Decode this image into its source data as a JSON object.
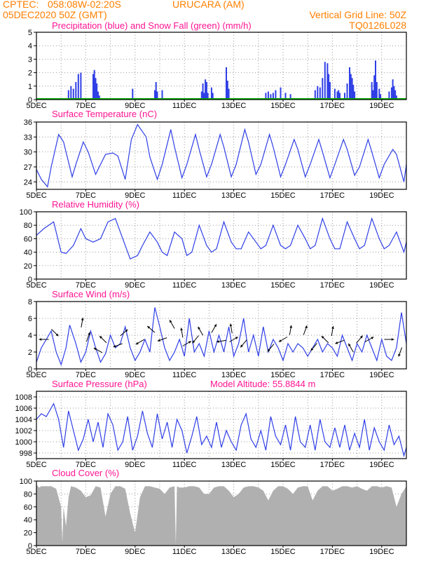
{
  "header": {
    "source": "CPTEC:",
    "coords": "058:08W-02:20S",
    "station": "URUCARA (AM)",
    "run": "05DEC2020 50Z (GMT)",
    "grid_note": "Vertical Grid Line: 50Z",
    "code": "TQ0126L028"
  },
  "x_axis": {
    "labels": [
      "5DEC",
      "7DEC",
      "9DEC",
      "11DEC",
      "13DEC",
      "15DEC",
      "17DEC",
      "19DEC"
    ],
    "day_start": 5,
    "day_end": 20
  },
  "colors": {
    "line": "#2f3fe6",
    "snow": "#00b000",
    "cloud": "#b0b0b0",
    "header": "#ff7f00",
    "title": "#ff1493"
  },
  "chart_data": [
    {
      "type": "bar",
      "title": "Precipitation (blue) and Snow Fall (green) (mm/h)",
      "ylim": [
        0,
        5
      ],
      "yticks": [
        0,
        1,
        2,
        3,
        4,
        5
      ],
      "series": [
        {
          "name": "Precipitation",
          "x": [
            6.3,
            6.4,
            6.5,
            6.6,
            6.7,
            6.8,
            7.3,
            7.35,
            7.4,
            7.45,
            7.5,
            7.55,
            8.9,
            9.8,
            9.85,
            9.9,
            10.1,
            11.7,
            11.75,
            11.8,
            11.85,
            11.9,
            11.95,
            12.1,
            12.15,
            12.7,
            12.75,
            12.8,
            14.3,
            14.4,
            14.5,
            14.6,
            14.7,
            14.9,
            15.1,
            15.3,
            16.3,
            16.4,
            16.5,
            16.6,
            16.7,
            16.8,
            16.85,
            16.9,
            17.1,
            17.2,
            17.25,
            17.3,
            17.5,
            17.6,
            17.7,
            17.75,
            17.8,
            17.85,
            17.9,
            18.6,
            18.65,
            18.7,
            18.75,
            18.8,
            18.9,
            18.95,
            19.3,
            19.4,
            19.45,
            19.5,
            19.55,
            19.6
          ],
          "values": [
            0.7,
            1.0,
            0.8,
            1.3,
            1.9,
            2.0,
            1.9,
            2.2,
            1.6,
            1.2,
            0.6,
            0.3,
            0.8,
            0.7,
            1.3,
            0.6,
            0.7,
            0.6,
            1.2,
            0.5,
            1.5,
            1.3,
            0.5,
            0.9,
            0.5,
            2.4,
            1.4,
            0.8,
            0.5,
            0.6,
            0.4,
            0.5,
            0.7,
            0.9,
            0.5,
            0.4,
            0.7,
            1.0,
            0.9,
            1.6,
            2.8,
            2.7,
            1.9,
            1.3,
            0.8,
            0.6,
            0.7,
            0.5,
            0.5,
            1.2,
            2.4,
            1.9,
            1.6,
            1.1,
            0.6,
            1.3,
            0.7,
            1.8,
            2.9,
            1.3,
            0.8,
            0.4,
            0.6,
            0.9,
            1.5,
            1.0,
            0.7,
            0.3
          ]
        },
        {
          "name": "Snow Fall",
          "x": [
            5,
            20
          ],
          "values": [
            0,
            0
          ]
        }
      ]
    },
    {
      "type": "line",
      "title": "Surface Temperature (nC)",
      "ylim": [
        22.5,
        36
      ],
      "yticks": [
        24,
        27,
        30,
        33,
        36
      ],
      "series": [
        {
          "name": "Surface Temperature",
          "x": [
            5.0,
            5.2,
            5.45,
            5.6,
            5.9,
            6.1,
            6.45,
            6.6,
            6.9,
            7.1,
            7.4,
            7.6,
            7.8,
            8.1,
            8.3,
            8.6,
            8.85,
            9.1,
            9.45,
            9.6,
            9.9,
            10.1,
            10.45,
            10.6,
            10.9,
            11.1,
            11.45,
            11.6,
            11.9,
            12.1,
            12.45,
            12.6,
            12.9,
            13.1,
            13.45,
            13.6,
            13.9,
            14.1,
            14.45,
            14.6,
            14.9,
            15.1,
            15.45,
            15.6,
            15.9,
            16.1,
            16.45,
            16.6,
            16.9,
            17.1,
            17.45,
            17.6,
            17.9,
            18.1,
            18.45,
            18.6,
            18.9,
            19.1,
            19.45,
            19.6,
            19.9,
            20.0
          ],
          "values": [
            26.5,
            24.5,
            23.0,
            27.0,
            33.5,
            32.0,
            25.0,
            27.5,
            32.0,
            30.0,
            25.5,
            27.5,
            29.5,
            29.8,
            29.2,
            24.5,
            32.5,
            35.5,
            33.0,
            29.0,
            24.5,
            27.5,
            34.5,
            31.0,
            24.8,
            27.5,
            33.5,
            30.5,
            25.0,
            27.5,
            33.5,
            31.0,
            25.0,
            27.5,
            34.5,
            32.0,
            25.5,
            27.5,
            33.5,
            31.0,
            25.0,
            27.5,
            32.5,
            30.5,
            25.0,
            27.5,
            32.5,
            30.0,
            24.8,
            27.5,
            32.5,
            30.5,
            25.3,
            27.0,
            32.5,
            30.0,
            24.8,
            27.5,
            30.5,
            29.5,
            24.0,
            27.5
          ]
        }
      ]
    },
    {
      "type": "line",
      "title": "Relative Humidity (%)",
      "ylim": [
        0,
        100
      ],
      "yticks": [
        0,
        20,
        40,
        60,
        80,
        100
      ],
      "series": [
        {
          "name": "Relative Humidity",
          "x": [
            5.0,
            5.3,
            5.7,
            6.0,
            6.2,
            6.5,
            6.8,
            7.0,
            7.3,
            7.6,
            7.9,
            8.2,
            8.5,
            8.8,
            9.1,
            9.3,
            9.6,
            9.9,
            10.1,
            10.3,
            10.6,
            10.9,
            11.1,
            11.3,
            11.6,
            11.9,
            12.1,
            12.3,
            12.6,
            12.9,
            13.1,
            13.3,
            13.6,
            13.9,
            14.1,
            14.3,
            14.6,
            14.9,
            15.1,
            15.3,
            15.6,
            15.9,
            16.1,
            16.3,
            16.6,
            16.9,
            17.1,
            17.3,
            17.6,
            17.9,
            18.1,
            18.3,
            18.6,
            18.9,
            19.1,
            19.3,
            19.6,
            19.9,
            20.0
          ],
          "values": [
            65,
            75,
            85,
            40,
            38,
            50,
            75,
            60,
            55,
            60,
            85,
            90,
            60,
            30,
            35,
            50,
            70,
            55,
            40,
            35,
            70,
            60,
            35,
            40,
            80,
            50,
            40,
            45,
            85,
            55,
            45,
            45,
            70,
            55,
            45,
            50,
            80,
            50,
            45,
            50,
            80,
            60,
            45,
            50,
            90,
            60,
            45,
            45,
            85,
            60,
            45,
            50,
            90,
            60,
            45,
            50,
            70,
            40,
            55
          ]
        }
      ]
    },
    {
      "type": "line",
      "title": "Surface Wind (m/s)",
      "ylim": [
        0,
        8
      ],
      "yticks": [
        0,
        2,
        4,
        6,
        8
      ],
      "series": [
        {
          "name": "Surface Wind",
          "x": [
            5.0,
            5.2,
            5.4,
            5.6,
            5.8,
            6.0,
            6.2,
            6.35,
            6.6,
            6.8,
            7.0,
            7.2,
            7.4,
            7.6,
            7.8,
            8.0,
            8.2,
            8.4,
            8.6,
            8.8,
            9.0,
            9.2,
            9.4,
            9.6,
            9.8,
            10.0,
            10.2,
            10.4,
            10.6,
            10.8,
            11.0,
            11.2,
            11.4,
            11.6,
            11.8,
            12.0,
            12.2,
            12.4,
            12.6,
            12.8,
            13.0,
            13.2,
            13.4,
            13.6,
            13.8,
            14.0,
            14.2,
            14.4,
            14.6,
            14.8,
            15.0,
            15.2,
            15.4,
            15.6,
            15.8,
            16.0,
            16.2,
            16.4,
            16.6,
            16.8,
            17.0,
            17.2,
            17.4,
            17.6,
            17.8,
            18.0,
            18.2,
            18.4,
            18.6,
            18.8,
            19.0,
            19.2,
            19.4,
            19.6,
            19.8,
            20.0
          ],
          "values": [
            0.8,
            2.5,
            3.5,
            4.5,
            2.0,
            0.5,
            2.5,
            5.2,
            3.0,
            0.8,
            2.0,
            4.5,
            2.5,
            0.8,
            1.8,
            4.0,
            2.5,
            3.0,
            5.0,
            2.5,
            1.0,
            2.0,
            3.5,
            2.0,
            7.3,
            5.0,
            2.5,
            1.0,
            2.0,
            3.5,
            1.5,
            6.0,
            2.0,
            3.0,
            1.5,
            4.5,
            2.0,
            4.0,
            2.0,
            5.0,
            1.5,
            3.0,
            6.0,
            2.0,
            4.0,
            1.5,
            5.0,
            2.0,
            3.5,
            2.5,
            1.0,
            3.0,
            2.0,
            3.0,
            2.5,
            1.5,
            2.5,
            3.5,
            2.0,
            3.0,
            2.5,
            1.5,
            4.0,
            2.5,
            1.0,
            3.0,
            2.0,
            4.0,
            2.5,
            1.0,
            3.5,
            1.5,
            1.0,
            2.5,
            6.7,
            3.0
          ]
        }
      ]
    },
    {
      "type": "line",
      "title": "Surface Pressure (hPa)",
      "annotation": "Model Altitude: 55.8844 m",
      "ylim": [
        997,
        1009
      ],
      "yticks": [
        998,
        1000,
        1002,
        1004,
        1006,
        1008
      ],
      "series": [
        {
          "name": "Surface Pressure",
          "x": [
            5.0,
            5.2,
            5.4,
            5.7,
            5.9,
            6.1,
            6.3,
            6.5,
            6.7,
            6.9,
            7.1,
            7.3,
            7.5,
            7.7,
            7.9,
            8.1,
            8.3,
            8.5,
            8.7,
            8.9,
            9.1,
            9.3,
            9.5,
            9.7,
            9.9,
            10.1,
            10.3,
            10.5,
            10.7,
            10.9,
            11.1,
            11.3,
            11.5,
            11.7,
            11.9,
            12.1,
            12.3,
            12.5,
            12.7,
            12.9,
            13.1,
            13.3,
            13.5,
            13.7,
            13.9,
            14.1,
            14.3,
            14.5,
            14.7,
            14.9,
            15.1,
            15.3,
            15.5,
            15.7,
            15.9,
            16.1,
            16.3,
            16.5,
            16.7,
            16.9,
            17.1,
            17.3,
            17.5,
            17.7,
            17.9,
            18.1,
            18.3,
            18.5,
            18.7,
            18.9,
            19.1,
            19.3,
            19.5,
            19.7,
            19.9,
            20.0
          ],
          "values": [
            1004.0,
            1005.0,
            1004.5,
            1006.8,
            1004.0,
            999.0,
            1005.5,
            1002.0,
            998.5,
            1000.5,
            1004.0,
            1000.0,
            1003.5,
            999.0,
            1005.0,
            1003.0,
            998.5,
            1000.0,
            1004.5,
            998.5,
            1001.0,
            1005.5,
            1001.5,
            999.0,
            1005.0,
            1000.5,
            1003.5,
            999.0,
            1004.0,
            1002.0,
            998.0,
            1001.0,
            1004.5,
            999.5,
            1001.0,
            999.0,
            1003.5,
            999.0,
            1002.0,
            1000.0,
            998.5,
            1003.0,
            1005.0,
            1000.5,
            999.0,
            1002.0,
            998.5,
            1004.5,
            1001.0,
            999.5,
            1003.0,
            998.5,
            1004.5,
            1000.0,
            999.0,
            1003.0,
            998.5,
            1004.0,
            1000.0,
            999.0,
            1002.5,
            999.0,
            1003.0,
            998.5,
            1001.5,
            999.0,
            1004.0,
            998.5,
            1002.5,
            1000.0,
            998.5,
            1003.0,
            999.5,
            1001.0,
            997.5,
            999.0
          ]
        }
      ]
    },
    {
      "type": "area",
      "title": "Cloud Cover (%)",
      "ylim": [
        0,
        100
      ],
      "yticks": [
        0,
        20,
        40,
        60,
        80,
        100
      ],
      "series": [
        {
          "name": "Cloud Cover",
          "x": [
            5.0,
            5.1,
            5.2,
            5.4,
            5.6,
            5.8,
            6.0,
            6.05,
            6.1,
            6.2,
            6.3,
            6.4,
            6.6,
            6.8,
            7.0,
            7.2,
            7.4,
            7.6,
            7.8,
            8.0,
            8.2,
            8.4,
            8.6,
            8.8,
            9.0,
            9.2,
            9.4,
            9.6,
            9.8,
            10.0,
            10.2,
            10.4,
            10.6,
            10.65,
            10.7,
            10.8,
            11.0,
            11.2,
            11.4,
            11.6,
            11.8,
            12.0,
            12.2,
            12.4,
            12.6,
            12.8,
            13.0,
            13.2,
            13.4,
            13.6,
            13.8,
            14.0,
            14.2,
            14.4,
            14.6,
            14.8,
            15.0,
            15.2,
            15.4,
            15.6,
            15.8,
            16.0,
            16.2,
            16.4,
            16.6,
            16.8,
            17.0,
            17.2,
            17.4,
            17.6,
            17.8,
            18.0,
            18.2,
            18.4,
            18.6,
            18.8,
            19.0,
            19.2,
            19.4,
            19.6,
            19.8,
            20.0
          ],
          "values": [
            95,
            90,
            92,
            92,
            92,
            88,
            60,
            5,
            60,
            30,
            75,
            92,
            90,
            85,
            75,
            78,
            92,
            90,
            45,
            80,
            92,
            92,
            88,
            50,
            20,
            75,
            92,
            92,
            90,
            88,
            80,
            90,
            92,
            2,
            92,
            90,
            90,
            92,
            92,
            90,
            80,
            80,
            90,
            92,
            92,
            85,
            75,
            80,
            90,
            92,
            92,
            90,
            85,
            70,
            85,
            92,
            92,
            88,
            80,
            90,
            92,
            92,
            70,
            85,
            92,
            92,
            85,
            88,
            92,
            92,
            90,
            92,
            88,
            85,
            92,
            92,
            90,
            92,
            90,
            60,
            80,
            92
          ]
        }
      ]
    }
  ],
  "wind_arrows": [
    {
      "x": 5.3,
      "y": 3.5,
      "dir": 180
    },
    {
      "x": 5.75,
      "y": 4.3,
      "dir": 315
    },
    {
      "x": 6.85,
      "y": 5.5,
      "dir": 80
    },
    {
      "x": 7.1,
      "y": 3.8,
      "dir": 70
    },
    {
      "x": 7.5,
      "y": 2.2,
      "dir": 150
    },
    {
      "x": 7.7,
      "y": 3.5,
      "dir": 135
    },
    {
      "x": 8.3,
      "y": 2.8,
      "dir": 200
    },
    {
      "x": 8.55,
      "y": 4.3,
      "dir": 40
    },
    {
      "x": 9.2,
      "y": 3.2,
      "dir": 210
    },
    {
      "x": 9.65,
      "y": 4.7,
      "dir": 140
    },
    {
      "x": 10.1,
      "y": 3.5,
      "dir": 200
    },
    {
      "x": 10.5,
      "y": 5.3,
      "dir": 120
    },
    {
      "x": 10.9,
      "y": 4.3,
      "dir": 100
    },
    {
      "x": 11.1,
      "y": 3.0,
      "dir": 30
    },
    {
      "x": 11.45,
      "y": 3.5,
      "dir": 230
    },
    {
      "x": 11.65,
      "y": 4.5,
      "dir": 120
    },
    {
      "x": 12.2,
      "y": 4.8,
      "dir": 60
    },
    {
      "x": 12.5,
      "y": 3.3,
      "dir": 190
    },
    {
      "x": 12.9,
      "y": 4.8,
      "dir": 100
    },
    {
      "x": 13.0,
      "y": 3.5,
      "dir": 30
    },
    {
      "x": 13.4,
      "y": 3.0,
      "dir": 230
    },
    {
      "x": 14.5,
      "y": 2.5,
      "dir": 230
    },
    {
      "x": 15.0,
      "y": 3.5,
      "dir": 210
    },
    {
      "x": 15.3,
      "y": 4.6,
      "dir": 80
    },
    {
      "x": 15.9,
      "y": 4.6,
      "dir": 70
    },
    {
      "x": 16.25,
      "y": 2.6,
      "dir": 230
    },
    {
      "x": 16.7,
      "y": 3.5,
      "dir": 135
    },
    {
      "x": 17.0,
      "y": 4.5,
      "dir": 80
    },
    {
      "x": 17.3,
      "y": 3.2,
      "dir": 200
    },
    {
      "x": 17.75,
      "y": 2.5,
      "dir": 120
    },
    {
      "x": 18.1,
      "y": 3.5,
      "dir": 50
    },
    {
      "x": 18.5,
      "y": 3.5,
      "dir": 30
    },
    {
      "x": 19.3,
      "y": 3.5,
      "dir": 0
    },
    {
      "x": 19.75,
      "y": 2.0,
      "dir": 250
    }
  ]
}
